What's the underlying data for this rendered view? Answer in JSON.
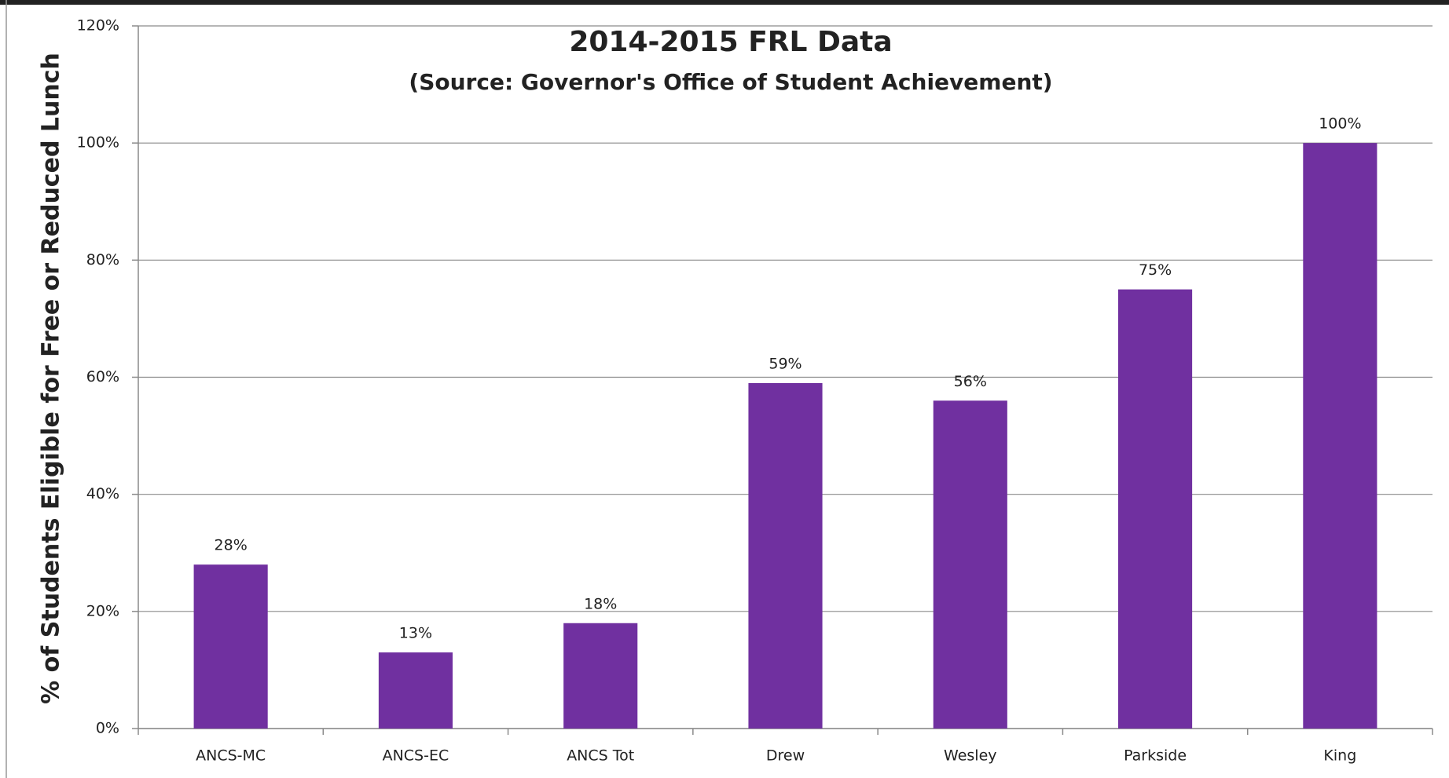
{
  "chart_data": {
    "type": "bar",
    "title": "2014-2015 FRL Data",
    "subtitle": "(Source: Governor's Office of Student Achievement)",
    "y_label": "% of Students Eligible for Free or Reduced Lunch",
    "categories": [
      "ANCS-MC",
      "ANCS-EC",
      "ANCS Tot",
      "Drew",
      "Wesley",
      "Parkside",
      "King"
    ],
    "values": [
      28,
      13,
      18,
      59,
      56,
      75,
      100
    ],
    "value_labels": [
      "28%",
      "13%",
      "18%",
      "59%",
      "56%",
      "75%",
      "100%"
    ],
    "color": "#7030a0",
    "ylim": [
      0,
      120
    ],
    "yticks": [
      {
        "value": 0,
        "label": "0%"
      },
      {
        "value": 20,
        "label": "20%"
      },
      {
        "value": 40,
        "label": "40%"
      },
      {
        "value": 60,
        "label": "60%"
      },
      {
        "value": 80,
        "label": "80%"
      },
      {
        "value": 100,
        "label": "100%"
      },
      {
        "value": 120,
        "label": "120%"
      }
    ],
    "grid": true
  }
}
